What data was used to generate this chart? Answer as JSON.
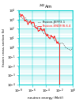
{
  "title": "$^{242}$Am",
  "xlabel": "neutron energy (MeV)",
  "ylabel": "fission cross-section (b)",
  "xlim": [
    1e-08,
    1
  ],
  "ylim": [
    0.0001,
    10000.0
  ],
  "bg_color": "#ffffff",
  "border_color": "#00cccc",
  "grid_color": "#00cccc",
  "line1_color": "#222222",
  "line2_color": "#ff2222",
  "legend1": "Fission-JEFF3.1",
  "legend2": "Fission-ENDF/B-6.4",
  "cutoff_log": -2,
  "title_fontsize": 3.8,
  "label_fontsize": 3.0,
  "tick_fontsize": 2.8,
  "legend_fontsize": 2.8
}
